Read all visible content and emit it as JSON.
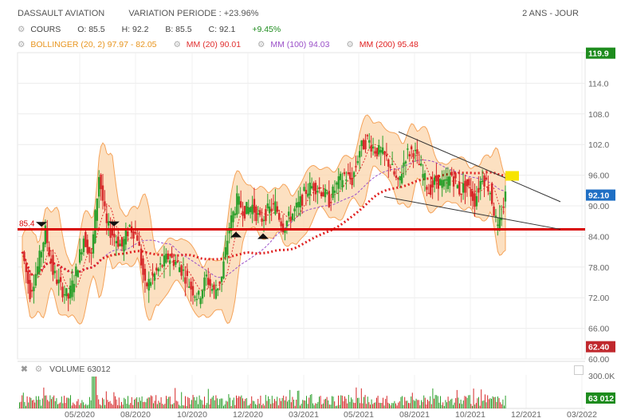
{
  "header": {
    "stock": "DASSAULT AVIATION",
    "variation": "VARIATION PERIODE : +23.96%",
    "period": "2 ANS - JOUR"
  },
  "legend": {
    "cours": "COURS",
    "o": "O: 85.5",
    "h": "H: 92.2",
    "b": "B: 85.5",
    "c": "C: 92.1",
    "change": "+9.45%",
    "bollinger": "BOLLINGER (20, 2) 97.97 - 82.05",
    "mm20": "MM (20) 90.01",
    "mm100": "MM (100) 94.03",
    "mm200": "MM (200) 95.48"
  },
  "colors": {
    "up": "#2ca02c",
    "down": "#d62728",
    "bollinger": "#f5a35a",
    "mm20": "#e03030",
    "mm100": "#9a4fc8",
    "mm200": "#e02020",
    "support": "#d80000"
  },
  "volume": {
    "label": "VOLUME",
    "value": "63012",
    "axis_top": "300.0K",
    "last_tag": "63 012"
  },
  "chart_data": {
    "type": "candlestick",
    "y_ticks": [
      60,
      66,
      72,
      78,
      84,
      90,
      96,
      102,
      108,
      114
    ],
    "y_tick_labels": [
      "60.00",
      "66.00",
      "72.00",
      "78.00",
      "84.00",
      "90.00",
      "96.00",
      "102.0",
      "108.0",
      "114.0"
    ],
    "ylim": [
      60,
      120
    ],
    "x_labels": [
      "05/2020",
      "08/2020",
      "10/2020",
      "12/2020",
      "03/2021",
      "05/2021",
      "08/2021",
      "10/2021",
      "12/2021",
      "03/2022"
    ],
    "price_tags": [
      {
        "label": "119.9",
        "value": 119.9,
        "color": "#1e8c1e"
      },
      {
        "label": "92.10",
        "value": 92.1,
        "color": "#1f6fc4"
      },
      {
        "label": "62.40",
        "value": 62.4,
        "color": "#c0282d"
      }
    ],
    "support_level": {
      "value": 85.4,
      "label": "85.4"
    },
    "close_series": [
      {
        "x": 0,
        "y": 81
      },
      {
        "x": 1,
        "y": 73
      },
      {
        "x": 2,
        "y": 78
      },
      {
        "x": 3,
        "y": 85
      },
      {
        "x": 4,
        "y": 77
      },
      {
        "x": 5,
        "y": 74
      },
      {
        "x": 6,
        "y": 72
      },
      {
        "x": 7,
        "y": 77
      },
      {
        "x": 8,
        "y": 84
      },
      {
        "x": 9,
        "y": 80
      },
      {
        "x": 10,
        "y": 96
      },
      {
        "x": 11,
        "y": 86
      },
      {
        "x": 12,
        "y": 84
      },
      {
        "x": 13,
        "y": 82
      },
      {
        "x": 14,
        "y": 86
      },
      {
        "x": 15,
        "y": 84
      },
      {
        "x": 16,
        "y": 74
      },
      {
        "x": 17,
        "y": 76
      },
      {
        "x": 18,
        "y": 78
      },
      {
        "x": 19,
        "y": 80
      },
      {
        "x": 20,
        "y": 79
      },
      {
        "x": 21,
        "y": 77
      },
      {
        "x": 22,
        "y": 74
      },
      {
        "x": 23,
        "y": 72
      },
      {
        "x": 24,
        "y": 76
      },
      {
        "x": 25,
        "y": 73
      },
      {
        "x": 26,
        "y": 76
      },
      {
        "x": 27,
        "y": 86
      },
      {
        "x": 28,
        "y": 91
      },
      {
        "x": 29,
        "y": 89
      },
      {
        "x": 30,
        "y": 90
      },
      {
        "x": 31,
        "y": 87
      },
      {
        "x": 32,
        "y": 89
      },
      {
        "x": 33,
        "y": 90
      },
      {
        "x": 34,
        "y": 86
      },
      {
        "x": 35,
        "y": 88
      },
      {
        "x": 36,
        "y": 90
      },
      {
        "x": 37,
        "y": 93
      },
      {
        "x": 38,
        "y": 94
      },
      {
        "x": 39,
        "y": 93
      },
      {
        "x": 40,
        "y": 91
      },
      {
        "x": 41,
        "y": 94
      },
      {
        "x": 42,
        "y": 96
      },
      {
        "x": 43,
        "y": 95
      },
      {
        "x": 44,
        "y": 101
      },
      {
        "x": 45,
        "y": 103
      },
      {
        "x": 46,
        "y": 101
      },
      {
        "x": 47,
        "y": 100
      },
      {
        "x": 48,
        "y": 98
      },
      {
        "x": 49,
        "y": 94
      },
      {
        "x": 50,
        "y": 100
      },
      {
        "x": 51,
        "y": 101
      },
      {
        "x": 52,
        "y": 97
      },
      {
        "x": 53,
        "y": 93
      },
      {
        "x": 54,
        "y": 95
      },
      {
        "x": 55,
        "y": 94
      },
      {
        "x": 56,
        "y": 96
      },
      {
        "x": 57,
        "y": 93
      },
      {
        "x": 58,
        "y": 94
      },
      {
        "x": 59,
        "y": 91
      },
      {
        "x": 60,
        "y": 96
      },
      {
        "x": 61,
        "y": 93
      },
      {
        "x": 62,
        "y": 85
      },
      {
        "x": 63,
        "y": 92
      }
    ]
  }
}
